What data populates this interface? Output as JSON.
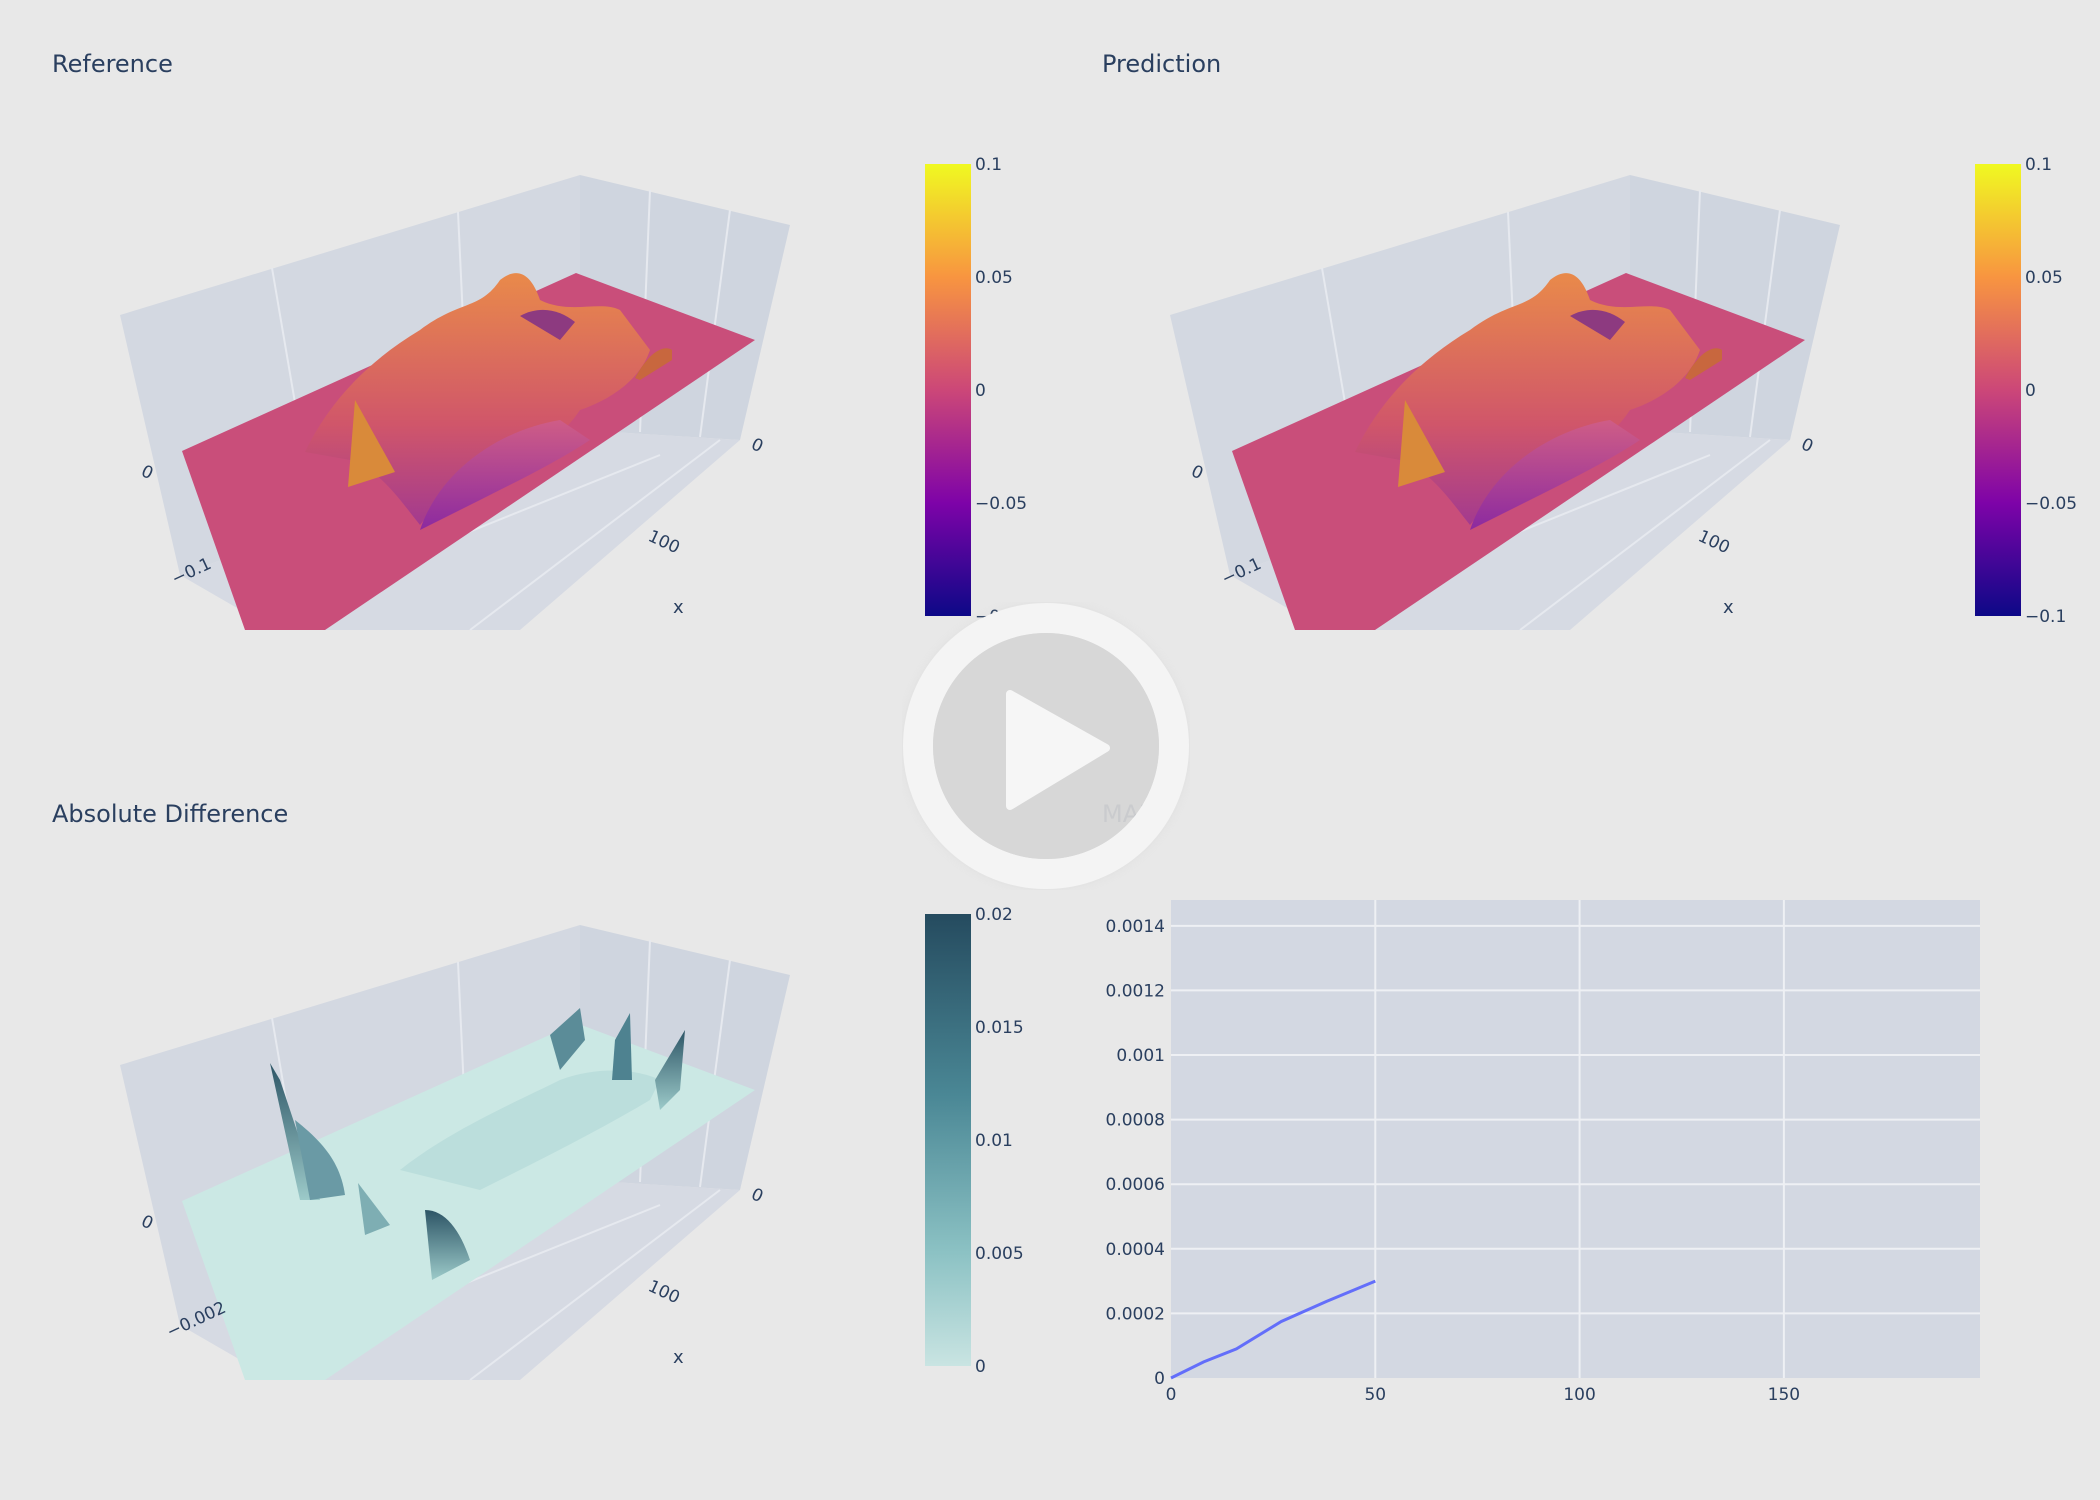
{
  "panels": {
    "reference": {
      "title": "Reference"
    },
    "prediction": {
      "title": "Prediction"
    },
    "difference": {
      "title": "Absolute Difference"
    },
    "mae": {
      "title": "MAE"
    }
  },
  "chart_data": [
    {
      "type": "surface",
      "title": "Reference",
      "axis_labels": {
        "x": "x"
      },
      "ticks": {
        "y_near": "0",
        "z_low": "−0.1",
        "x_far": "0",
        "x_mid": "100"
      },
      "colorbar": {
        "colorscale": "plasma",
        "range": [
          -0.1,
          0.1
        ],
        "ticks": [
          "0.1",
          "0.05",
          "0",
          "−0.05",
          "−0.1"
        ]
      }
    },
    {
      "type": "surface",
      "title": "Prediction",
      "axis_labels": {
        "x": "x"
      },
      "ticks": {
        "y_near": "0",
        "z_low": "−0.1",
        "x_far": "0",
        "x_mid": "100"
      },
      "colorbar": {
        "colorscale": "plasma",
        "range": [
          -0.1,
          0.1
        ],
        "ticks": [
          "0.1",
          "0.05",
          "0",
          "−0.05",
          "−0.1"
        ]
      }
    },
    {
      "type": "surface",
      "title": "Absolute Difference",
      "axis_labels": {
        "x": "x"
      },
      "ticks": {
        "y_near": "0",
        "z_low": "−0.002",
        "x_far": "0",
        "x_mid": "100"
      },
      "colorbar": {
        "colorscale": "teal",
        "range": [
          0,
          0.02
        ],
        "ticks": [
          "0.02",
          "0.015",
          "0.01",
          "0.005",
          "0"
        ]
      }
    },
    {
      "type": "line",
      "title": "MAE",
      "x": [
        0,
        8,
        16,
        27,
        38,
        50
      ],
      "series": [
        {
          "values": [
            0,
            5e-05,
            9e-05,
            0.000175,
            0.000237,
            0.0003
          ]
        }
      ],
      "xlim": [
        0,
        198
      ],
      "ylim": [
        0,
        0.00148
      ],
      "xticks": [
        0,
        50,
        100,
        150
      ],
      "xtick_labels": [
        "0",
        "50",
        "100",
        "150"
      ],
      "yticks": [
        0,
        0.0002,
        0.0004,
        0.0006,
        0.0008,
        0.001,
        0.0012,
        0.0014
      ],
      "ytick_labels": [
        "0",
        "0.0002",
        "0.0004",
        "0.0006",
        "0.0008",
        "0.001",
        "0.0012",
        "0.0014"
      ],
      "grid": true,
      "line_color": "#636efa"
    }
  ],
  "player": {
    "icon": "play-icon"
  }
}
